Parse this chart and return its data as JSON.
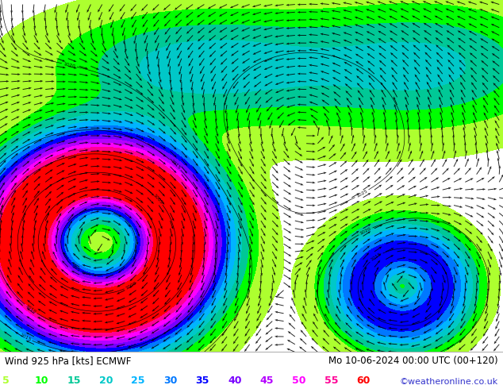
{
  "title_left": "Wind 925 hPa [kts] ECMWF",
  "title_right": "Mo 10-06-2024 00:00 UTC (00+120)",
  "copyright": "©weatheronline.co.uk",
  "legend_values": [
    5,
    10,
    15,
    20,
    25,
    30,
    35,
    40,
    45,
    50,
    55,
    60
  ],
  "legend_colors": [
    "#adff2f",
    "#00ff00",
    "#00c896",
    "#00c8c8",
    "#00b4ff",
    "#0078ff",
    "#0000ff",
    "#7800ff",
    "#b400ff",
    "#ff00ff",
    "#ff0096",
    "#ff0000"
  ],
  "bg_color": "#ffffff",
  "text_color": "#000000",
  "figsize": [
    6.34,
    4.9
  ],
  "dpi": 100,
  "title_fontsize": 8.5,
  "legend_fontsize": 9,
  "copyright_fontsize": 8
}
